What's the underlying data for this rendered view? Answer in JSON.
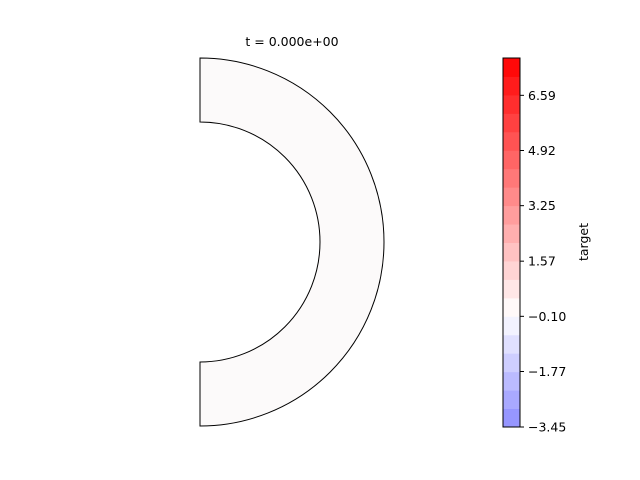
{
  "chart_data": {
    "type": "heatmap",
    "title": "t = 0.000e+00",
    "field_value": 0.0,
    "domain_shape": "half-annulus",
    "colormap": "bwr",
    "colorbar": {
      "label": "target",
      "range": [
        -3.45,
        7.72
      ],
      "num_levels": 20,
      "ticks": [
        "6.59",
        "4.92",
        "3.25",
        "1.57",
        "−0.10",
        "−1.77",
        "−3.45"
      ],
      "tick_values": [
        6.59,
        4.92,
        3.25,
        1.57,
        -0.1,
        -1.77,
        -3.45
      ]
    },
    "colors": {
      "fill": "#fcfafa",
      "outline": "#000000"
    }
  }
}
